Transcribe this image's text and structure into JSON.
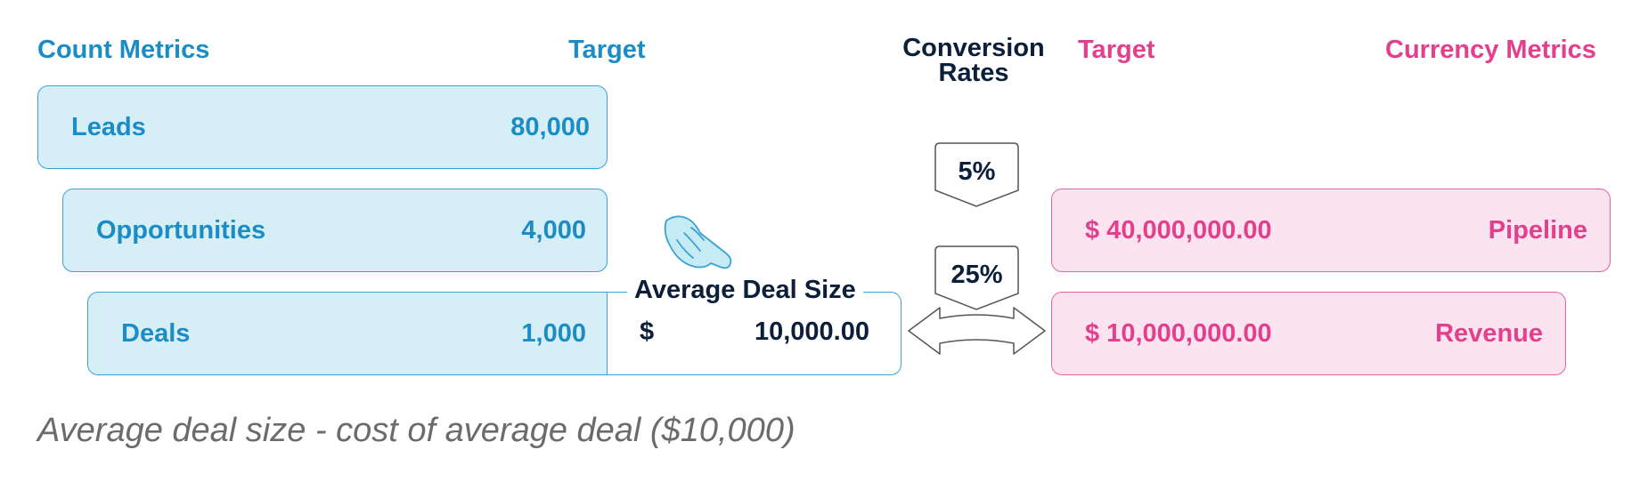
{
  "headers": {
    "count_metrics": "Count Metrics",
    "target_left": "Target",
    "conversion_rates": "Conversion Rates",
    "target_right": "Target",
    "currency_metrics": "Currency Metrics"
  },
  "count_rows": [
    {
      "label": "Leads",
      "value": "80,000"
    },
    {
      "label": "Opportunities",
      "value": "4,000"
    },
    {
      "label": "Deals",
      "value": "1,000"
    }
  ],
  "conversion_rates": [
    {
      "value": "5%"
    },
    {
      "value": "25%"
    }
  ],
  "average_deal_size": {
    "title": "Average Deal Size",
    "currency": "$",
    "value": "10,000.00"
  },
  "currency_rows": [
    {
      "value": "$ 40,000,000.00",
      "label": "Pipeline"
    },
    {
      "value": "$ 10,000,000.00",
      "label": "Revenue"
    }
  ],
  "caption": "Average deal size - cost of average deal ($10,000)",
  "colors": {
    "count_text": "#1b8cc4",
    "count_fill": "#d6eef6",
    "currency_text": "#e23f8d",
    "currency_fill": "#fbe4ef",
    "dark_text": "#0b1f3a"
  },
  "icons": [
    "pointing-hand-icon",
    "double-arrow-icon"
  ]
}
